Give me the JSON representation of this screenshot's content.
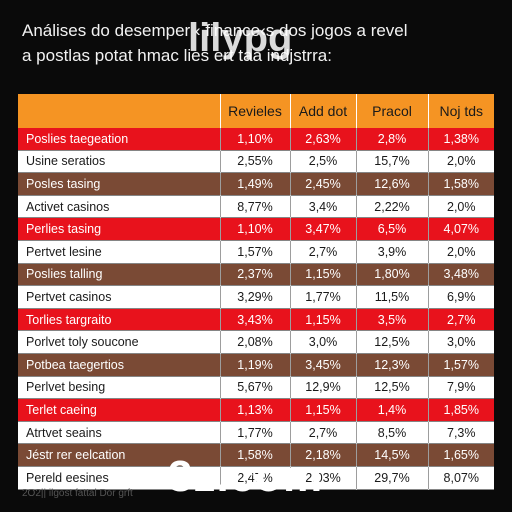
{
  "title_line1": "Análises do desemper ‹ finance‹s dos jogos a revel",
  "title_line2": "a postlas potat hmac lies ert taa indjstrra:",
  "watermark_top": "lilypg",
  "watermark_bottom": "3z.com",
  "footer_text": "2O2|| ilgost fattal Dor grft",
  "chart_data": {
    "type": "table",
    "columns": [
      "",
      "Revieles",
      "Add dot",
      "Pracol",
      "Noj tds"
    ],
    "rows": [
      {
        "style": "red",
        "cells": [
          "Poslies taegeation",
          "1,10%",
          "2,63%",
          "2,8%",
          "1,38%"
        ]
      },
      {
        "style": "white",
        "cells": [
          "Usine seratios",
          "2,55%",
          "2,5%",
          "15,7%",
          "2,0%"
        ]
      },
      {
        "style": "brown",
        "cells": [
          "Posles tasing",
          "1,49%",
          "2,45%",
          "12,6%",
          "1,58%"
        ]
      },
      {
        "style": "white",
        "cells": [
          "Activet casinos",
          "8,77%",
          "3,4%",
          "2,22%",
          "2,0%"
        ]
      },
      {
        "style": "red",
        "cells": [
          "Perlies tasing",
          "1,10%",
          "3,47%",
          "6,5%",
          "4,07%"
        ]
      },
      {
        "style": "white",
        "cells": [
          "Pertvet lesine",
          "1,57%",
          "2,7%",
          "3,9%",
          "2,0%"
        ]
      },
      {
        "style": "brown",
        "cells": [
          "Poslies talling",
          "2,37%",
          "1,15%",
          "1,80%",
          "3,48%"
        ]
      },
      {
        "style": "white",
        "cells": [
          "Pertvet casinos",
          "3,29%",
          "1,77%",
          "11,5%",
          "6,9%"
        ]
      },
      {
        "style": "red",
        "cells": [
          "Torlies targraito",
          "3,43%",
          "1,15%",
          "3,5%",
          "2,7%"
        ]
      },
      {
        "style": "white",
        "cells": [
          "Porlvet toly soucone",
          "2,08%",
          "3,0%",
          "12,5%",
          "3,0%"
        ]
      },
      {
        "style": "brown",
        "cells": [
          "Potbea taegertios",
          "1,19%",
          "3,45%",
          "12,3%",
          "1,57%"
        ]
      },
      {
        "style": "white",
        "cells": [
          "Perlvet besing",
          "5,67%",
          "12,9%",
          "12,5%",
          "7,9%"
        ]
      },
      {
        "style": "red",
        "cells": [
          "Terlet caeing",
          "1,13%",
          "1,15%",
          "1,4%",
          "1,85%"
        ]
      },
      {
        "style": "white",
        "cells": [
          "Atrtvet seains",
          "1,77%",
          "2,7%",
          "8,5%",
          "7,3%"
        ]
      },
      {
        "style": "brown",
        "cells": [
          "Jéstr rer eelcation",
          "1,58%",
          "2,18%",
          "14,5%",
          "1,65%"
        ]
      },
      {
        "style": "white",
        "cells": [
          "Pereld eesines",
          "2,47%",
          "2,03%",
          "29,7%",
          "8,07%"
        ]
      }
    ]
  }
}
